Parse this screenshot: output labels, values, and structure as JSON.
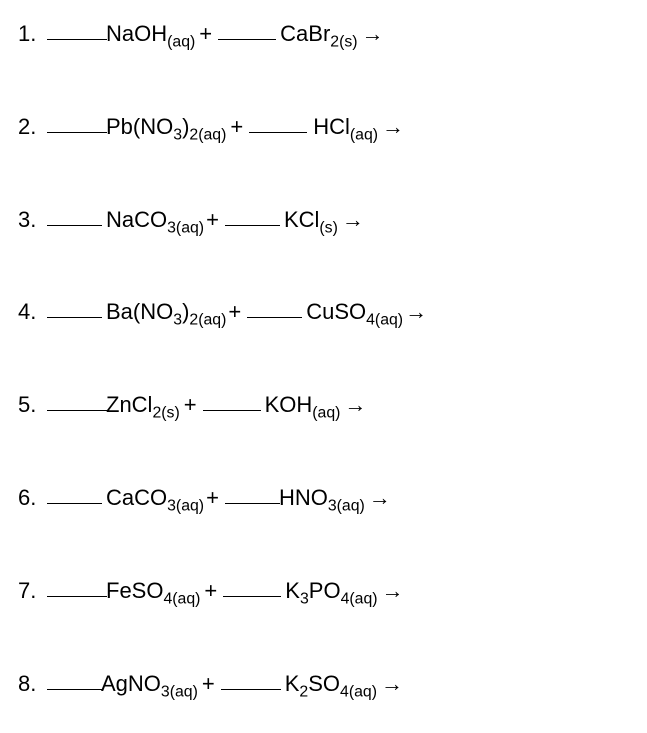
{
  "problems": [
    {
      "num": "1.",
      "r1_pre_space": "sp1",
      "b1_w": "w60",
      "r1_gap": "spn1",
      "r1": "NaOH",
      "r1_sub": "(aq)",
      "plus_gap": "sp4",
      "b2_w": "w58",
      "r2_gap": "sp4",
      "r2": "CaBr",
      "r2_sub": "2(s)",
      "arrow_gap": "sp4"
    },
    {
      "num": "2.",
      "r1_pre_space": "sp1",
      "b1_w": "w60",
      "r1_gap": "spn1",
      "r1": "Pb(NO",
      "r1_mid_sub": "3",
      "r1_tail": ")",
      "r1_sub": "2(aq)",
      "plus_gap": "sp4",
      "b2_w": "w58",
      "r2_gap": "sp6",
      "r2": "HCl",
      "r2_sub": "(aq)",
      "arrow_gap": "sp4"
    },
    {
      "num": "3.",
      "r1_pre_space": "sp1",
      "b1_w": "w55",
      "r1_gap": "sp4",
      "r1": "NaCO",
      "r1_sub": "3(aq)",
      "plus_gap": "sp2",
      "b2_w": "w55",
      "r2_gap": "sp4",
      "r2": "KCl",
      "r2_sub": "(s)",
      "arrow_gap": "sp4"
    },
    {
      "num": "4.",
      "r1_pre_space": "sp1",
      "b1_w": "w55",
      "r1_gap": "sp4",
      "r1": "Ba(NO",
      "r1_mid_sub": "3",
      "r1_tail": ")",
      "r1_sub": "2(aq)",
      "plus_gap": "sp2",
      "b2_w": "w55",
      "r2_gap": "sp4",
      "r2": "CuSO",
      "r2_sub": "4(aq)",
      "arrow_gap": "sp2"
    },
    {
      "num": "5.",
      "r1_pre_space": "sp1",
      "b1_w": "w60",
      "r1_gap": "spn1",
      "r1": "ZnCl",
      "r1_sub": "2(s)",
      "plus_gap": "sp4",
      "b2_w": "w58",
      "r2_gap": "sp4",
      "r2": "KOH",
      "r2_sub": "(aq)",
      "arrow_gap": "sp4"
    },
    {
      "num": "6.",
      "r1_pre_space": "sp1",
      "b1_w": "w55",
      "r1_gap": "sp4",
      "r1": "CaCO",
      "r1_sub": "3(aq)",
      "plus_gap": "sp2",
      "b2_w": "w55",
      "r2_gap": "spn1",
      "r2": "HNO",
      "r2_sub": "3(aq)",
      "arrow_gap": "sp4"
    },
    {
      "num": "7.",
      "r1_pre_space": "sp1",
      "b1_w": "w60",
      "r1_gap": "spn1",
      "r1": "FeSO",
      "r1_sub": "4(aq)",
      "plus_gap": "sp4",
      "b2_w": "w58",
      "r2_gap": "sp4",
      "r2": "K",
      "r2_mid_sub": "3",
      "r2_tail": "PO",
      "r2_sub": "4(aq)",
      "arrow_gap": "sp4"
    },
    {
      "num": "8.",
      "r1_pre_space": "sp1",
      "b1_w": "w55",
      "r1_gap": "spn1",
      "r1": "AgNO",
      "r1_sub": "3(aq)",
      "plus_gap": "sp4",
      "b2_w": "w60",
      "r2_gap": "sp4",
      "r2": "K",
      "r2_mid_sub": "2",
      "r2_tail": "SO",
      "r2_sub": "4(aq)",
      "arrow_gap": "sp4"
    }
  ],
  "symbols": {
    "plus": "+",
    "arrow": "→"
  }
}
